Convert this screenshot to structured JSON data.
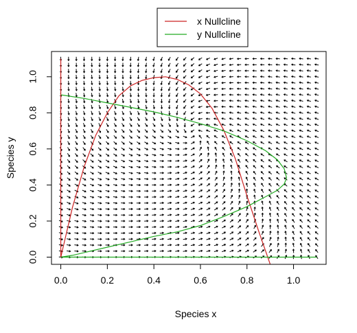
{
  "chart_data": {
    "type": "line",
    "title": "",
    "xlabel": "Species x",
    "ylabel": "Species y",
    "xlim": [
      -0.04,
      1.14
    ],
    "ylim": [
      -0.04,
      1.14
    ],
    "xticks": [
      "0.0",
      "0.2",
      "0.4",
      "0.6",
      "0.8",
      "1.0"
    ],
    "yticks": [
      "0.0",
      "0.2",
      "0.4",
      "0.6",
      "0.8",
      "1.0"
    ],
    "grid": false,
    "legend_position": "top-center",
    "vector_field": {
      "kind": "direction-field",
      "x_range": [
        0,
        1.1
      ],
      "y_range": [
        0,
        1.1
      ],
      "grid_points": 34,
      "color": "#000000"
    },
    "series": [
      {
        "name": "x Nullcline",
        "color": "#cc2222",
        "x": [
          0,
          0.05,
          0.1,
          0.15,
          0.2,
          0.25,
          0.3,
          0.35,
          0.4,
          0.45,
          0.5,
          0.55,
          0.6,
          0.65,
          0.7,
          0.75,
          0.8,
          0.85,
          0.9
        ],
        "y": [
          0,
          0.275,
          0.5,
          0.675,
          0.8,
          0.895,
          0.95,
          0.98,
          0.995,
          1.0,
          0.985,
          0.955,
          0.905,
          0.825,
          0.705,
          0.545,
          0.34,
          0.145,
          -0.04
        ]
      },
      {
        "name": "y Nullcline",
        "color": "#22aa22",
        "x": [
          0,
          0.1,
          0.2,
          0.3,
          0.4,
          0.5,
          0.6,
          0.7,
          0.8,
          0.88,
          0.93,
          0.96,
          0.97,
          0.96,
          0.93,
          0.88,
          0.8,
          0.7,
          0.6,
          0.5,
          0.4,
          0.3,
          0.2,
          0.1,
          0.05,
          0,
          0.2,
          0.5,
          0.8,
          1.1
        ],
        "y": [
          0.9,
          0.88,
          0.855,
          0.83,
          0.805,
          0.775,
          0.74,
          0.7,
          0.645,
          0.59,
          0.54,
          0.49,
          0.44,
          0.405,
          0.37,
          0.335,
          0.28,
          0.225,
          0.175,
          0.14,
          0.115,
          0.085,
          0.055,
          0.025,
          0.01,
          0,
          0,
          0,
          0,
          0
        ]
      }
    ]
  }
}
